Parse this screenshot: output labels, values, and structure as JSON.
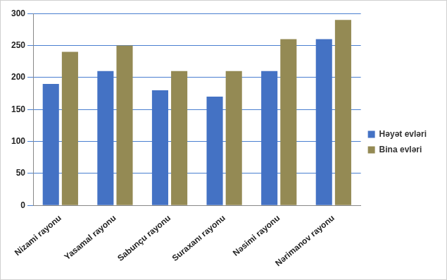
{
  "chart_data": {
    "type": "bar",
    "categories": [
      "Nizami rayonu",
      "Yasamal rayonu",
      "Sabunçu rayonu",
      "Suraxanı rayonu",
      "Nəsimi rayonu",
      "Nərimanov rayonu"
    ],
    "series": [
      {
        "name": "Həyət evləri",
        "color": "#4472c4",
        "values": [
          190,
          210,
          180,
          170,
          210,
          260
        ]
      },
      {
        "name": "Bina evləri",
        "color": "#948a54",
        "values": [
          240,
          250,
          210,
          210,
          260,
          290
        ]
      }
    ],
    "ylim": [
      0,
      300
    ],
    "yticks": [
      0,
      50,
      100,
      150,
      200,
      250,
      300
    ],
    "grid": true,
    "legend": "right"
  }
}
